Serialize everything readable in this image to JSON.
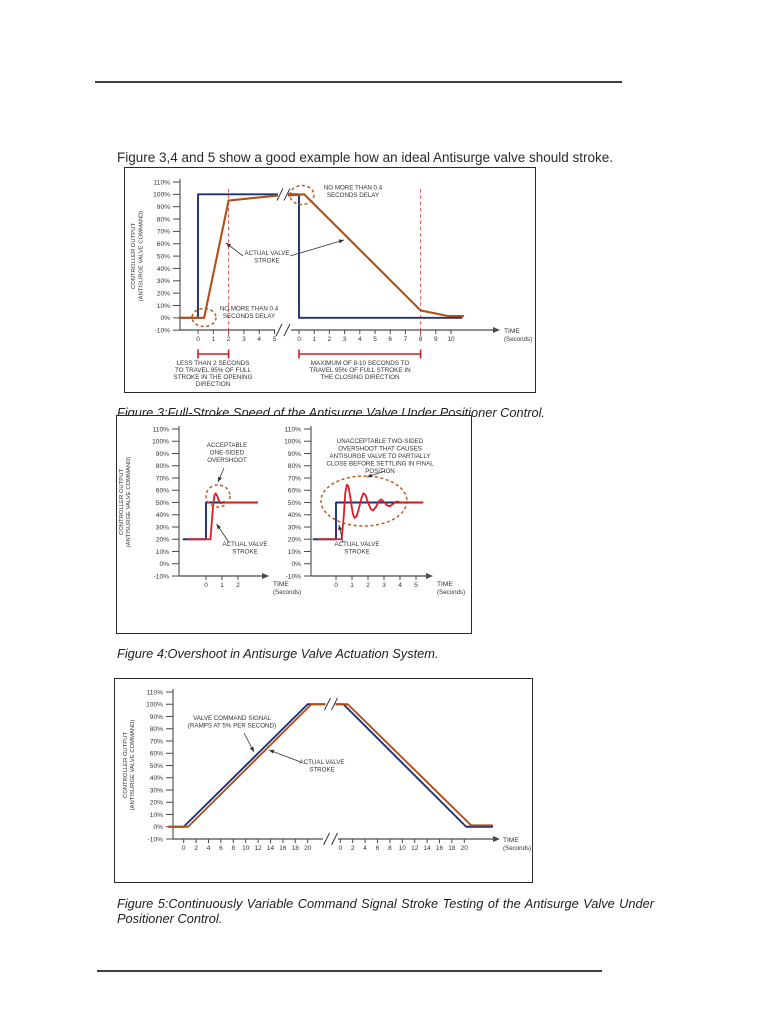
{
  "page": {
    "intro": "Figure 3,4 and 5 show a good example how an ideal Antisurge valve should stroke."
  },
  "colors": {
    "command": "#1e3070",
    "stroke": "#b05018",
    "stroke_red": "#e01b24",
    "dashed_circle": "#bc5a1c",
    "guide": "#d4564f",
    "bracket": "#cc2026",
    "axis": "#4a4a4a",
    "text": "#333333"
  },
  "axis": {
    "ylabel_lines": [
      "CONTROLLER OUTPUT",
      "(ANTISURGE VALVE COMMAND)"
    ],
    "time_label": "TIME",
    "time_sub": "(Seconds)"
  },
  "figures": {
    "fig3": {
      "caption": "Figure 3:Full-Stroke Speed of the Antisurge Valve Under Positioner Control.",
      "ann": {
        "delay_top": [
          "NO MORE THAN 0.4",
          "SECONDS DELAY"
        ],
        "delay_bottom": [
          "NO MORE THAN 0.4",
          "SECONDS DELAY"
        ],
        "actual": [
          "ACTUAL VALVE",
          "STROKE"
        ],
        "bracket_open": [
          "LESS THAN 2 SECONDS",
          "TO TRAVEL 95% OF FULL",
          "STROKE IN THE OPENING",
          "DIRECTION"
        ],
        "bracket_close": [
          "MAXIMUM OF 8-10 SECONDS TO",
          "TRAVEL 95% OF FULL STROKE IN",
          "THE CLOSING DIRECTION"
        ]
      }
    },
    "fig4": {
      "caption": "Figure 4:Overshoot in Antisurge Valve Actuation System.",
      "ann": {
        "acceptable": [
          "ACCEPTABLE",
          "ONE-SIDED",
          "OVERSHOOT"
        ],
        "unacceptable": [
          "UNACCEPTABLE TWO-SIDED",
          "OVERSHOOT THAT CAUSES",
          "ANTISURGE VALVE TO PARTIALLY",
          "CLOSE BEFORE SETTLING IN FINAL",
          "POSITION"
        ],
        "actual": [
          "ACTUAL VALVE",
          "STROKE"
        ]
      }
    },
    "fig5": {
      "caption": "Figure 5:Continuously Variable Command Signal Stroke Testing of the Antisurge Valve Under Positioner Control.",
      "ann": {
        "command": [
          "VALVE COMMAND SIGNAL",
          "(RAMPS AT 5% PER SECOND)"
        ],
        "actual": [
          "ACTUAL VALVE",
          "STROKE"
        ]
      }
    }
  },
  "chart_data": [
    {
      "id": "figure3",
      "type": "line",
      "title": "Full-Stroke Speed of the Antisurge Valve Under Positioner Control",
      "xlabel": "TIME (Seconds)",
      "ylabel": "CONTROLLER OUTPUT (ANTISURGE VALVE COMMAND)",
      "ylim": [
        -10,
        110
      ],
      "x_axis_break": true,
      "y_tick_labels": [
        "110%",
        "100%",
        "90%",
        "80%",
        "70%",
        "60%",
        "50%",
        "40%",
        "30%",
        "20%",
        "10%",
        "0%",
        "-10%"
      ],
      "x_tick_labels_opening": [
        "0",
        "1",
        "2",
        "3",
        "4",
        "5"
      ],
      "x_tick_labels_closing": [
        "0",
        "1",
        "2",
        "3",
        "4",
        "5",
        "6",
        "7",
        "8",
        "9",
        "10"
      ],
      "guides": {
        "opening_x": 2,
        "closing_x": 8
      },
      "series": [
        {
          "name": "valve command signal",
          "opening": [
            [
              -1.2,
              0
            ],
            [
              0,
              0
            ],
            [
              0,
              100
            ],
            [
              5.2,
              100
            ]
          ],
          "closing": [
            [
              -0.8,
              100
            ],
            [
              0,
              100
            ],
            [
              0,
              0
            ],
            [
              10.7,
              0
            ]
          ]
        },
        {
          "name": "actual valve stroke",
          "opening": [
            [
              -1.2,
              0
            ],
            [
              0.4,
              0
            ],
            [
              2,
              95
            ],
            [
              5.2,
              99
            ]
          ],
          "closing": [
            [
              -0.75,
              99
            ],
            [
              0.35,
              100
            ],
            [
              8,
              6
            ],
            [
              9.8,
              1.5
            ],
            [
              10.8,
              1.5
            ]
          ]
        }
      ]
    },
    {
      "id": "figure4-acceptable",
      "type": "line",
      "title": "Acceptable one-sided overshoot",
      "xlabel": "TIME (Seconds)",
      "ylabel": "CONTROLLER OUTPUT (ANTISURGE VALVE COMMAND)",
      "ylim": [
        -10,
        110
      ],
      "y_tick_labels": [
        "110%",
        "100%",
        "90%",
        "80%",
        "70%",
        "60%",
        "50%",
        "40%",
        "30%",
        "20%",
        "10%",
        "0%",
        "-10%"
      ],
      "x_tick_labels": [
        "0",
        "1",
        "2"
      ],
      "series": [
        {
          "name": "valve command signal",
          "points": [
            [
              -1.4,
              20
            ],
            [
              0,
              20
            ],
            [
              0,
              50
            ],
            [
              3.2,
              50
            ]
          ]
        },
        {
          "name": "actual valve stroke",
          "points": [
            [
              -1.1,
              20
            ],
            [
              0.28,
              20
            ],
            [
              0.42,
              44
            ],
            [
              0.52,
              55.5
            ],
            [
              0.6,
              57.5
            ],
            [
              0.7,
              55.5
            ],
            [
              0.82,
              51
            ],
            [
              0.95,
              49.3
            ],
            [
              1.1,
              50.4
            ],
            [
              1.3,
              50
            ],
            [
              3.2,
              50
            ]
          ]
        }
      ]
    },
    {
      "id": "figure4-unacceptable",
      "type": "line",
      "title": "Unacceptable two-sided overshoot",
      "xlabel": "TIME (Seconds)",
      "ylim": [
        -10,
        110
      ],
      "y_tick_labels": [
        "110%",
        "100%",
        "90%",
        "80%",
        "70%",
        "60%",
        "50%",
        "40%",
        "30%",
        "20%",
        "10%",
        "0%",
        "-10%"
      ],
      "x_tick_labels": [
        "0",
        "1",
        "2",
        "3",
        "4",
        "5"
      ],
      "series": [
        {
          "name": "valve command signal",
          "points": [
            [
              -1.4,
              20
            ],
            [
              0,
              20
            ],
            [
              0,
              50
            ],
            [
              5.4,
              50
            ]
          ]
        },
        {
          "name": "actual valve stroke",
          "points": [
            [
              -1.1,
              20
            ],
            [
              0.35,
              20
            ],
            [
              0.48,
              38
            ],
            [
              0.58,
              58
            ],
            [
              0.68,
              64.5
            ],
            [
              0.78,
              63
            ],
            [
              0.92,
              52
            ],
            [
              1.05,
              41
            ],
            [
              1.15,
              37.5
            ],
            [
              1.28,
              38.5
            ],
            [
              1.45,
              46
            ],
            [
              1.6,
              54
            ],
            [
              1.72,
              57.5
            ],
            [
              1.85,
              56
            ],
            [
              2.0,
              50
            ],
            [
              2.18,
              44.5
            ],
            [
              2.32,
              43.5
            ],
            [
              2.5,
              46.5
            ],
            [
              2.68,
              51
            ],
            [
              2.82,
              52.5
            ],
            [
              3.0,
              50.5
            ],
            [
              3.2,
              47.5
            ],
            [
              3.38,
              47
            ],
            [
              3.58,
              49
            ],
            [
              3.78,
              50.8
            ],
            [
              4.0,
              50.2
            ],
            [
              4.3,
              49.8
            ],
            [
              5.4,
              50
            ]
          ]
        }
      ]
    },
    {
      "id": "figure5",
      "type": "line",
      "title": "Continuously Variable Command Signal Stroke Testing",
      "xlabel": "TIME (Seconds)",
      "ylabel": "CONTROLLER OUTPUT (ANTISURGE VALVE COMMAND)",
      "ylim": [
        -10,
        110
      ],
      "x_axis_break": true,
      "ramp_rate_pct_per_s": 5,
      "y_tick_labels": [
        "110%",
        "100%",
        "90%",
        "80%",
        "70%",
        "60%",
        "50%",
        "40%",
        "30%",
        "20%",
        "10%",
        "0%",
        "-10%"
      ],
      "x_tick_labels_opening": [
        "0",
        "2",
        "4",
        "6",
        "8",
        "10",
        "12",
        "14",
        "16",
        "18",
        "20"
      ],
      "x_tick_labels_closing": [
        "0",
        "2",
        "4",
        "6",
        "8",
        "10",
        "12",
        "14",
        "16",
        "18",
        "20"
      ],
      "series": [
        {
          "name": "valve command signal",
          "opening": [
            [
              -2.4,
              0
            ],
            [
              0,
              0
            ],
            [
              20,
              100
            ],
            [
              22.8,
              100
            ]
          ],
          "closing": [
            [
              -1.0,
              100
            ],
            [
              0.5,
              100
            ],
            [
              20.3,
              0
            ],
            [
              24.5,
              0
            ]
          ]
        },
        {
          "name": "actual valve stroke",
          "opening": [
            [
              -2.4,
              0
            ],
            [
              0.7,
              0
            ],
            [
              20.6,
              100
            ],
            [
              22.8,
              100
            ]
          ],
          "closing": [
            [
              -1.0,
              100
            ],
            [
              1.2,
              100
            ],
            [
              21.1,
              1.2
            ],
            [
              24.5,
              1.2
            ]
          ]
        }
      ]
    }
  ]
}
